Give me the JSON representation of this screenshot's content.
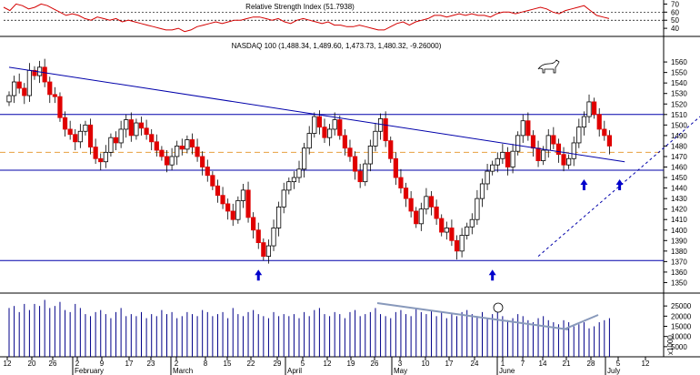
{
  "chart_data": [
    {
      "type": "line",
      "panel": "rsi",
      "title": "Relative Strength Index (51.7938)",
      "ylim": [
        30,
        75
      ],
      "y_ticks": [
        70,
        60,
        50,
        40
      ],
      "reference_lines": [
        60,
        50
      ],
      "series": [
        {
          "values": [
            66,
            62,
            70,
            68,
            64,
            66,
            70,
            68,
            64,
            60,
            56,
            58,
            56,
            52,
            50,
            54,
            52,
            50,
            52,
            48,
            50,
            48,
            46,
            44,
            42,
            40,
            38,
            38,
            40,
            36,
            38,
            42,
            44,
            46,
            48,
            46,
            48,
            50,
            50,
            52,
            54,
            54,
            52,
            50,
            52,
            48,
            46,
            50,
            52,
            50,
            48,
            46,
            48,
            44,
            44,
            42,
            42,
            44,
            42,
            40,
            38,
            38,
            42,
            46,
            48,
            44,
            48,
            50,
            52,
            56,
            56,
            54,
            56,
            58,
            56,
            58,
            56,
            56,
            54,
            58,
            60,
            60,
            58,
            60,
            62,
            64,
            66,
            64,
            60,
            58,
            62,
            64,
            66,
            68,
            62,
            56,
            54,
            52
          ]
        }
      ]
    },
    {
      "type": "candlestick",
      "panel": "price",
      "title": "NASDAQ 100 (1,488.34, 1,489.60, 1,473.73, 1,480.32, -9.26000)",
      "ylim": [
        1350,
        1570
      ],
      "y_ticks": [
        1560,
        1550,
        1540,
        1530,
        1520,
        1510,
        1500,
        1490,
        1480,
        1470,
        1460,
        1450,
        1440,
        1430,
        1420,
        1410,
        1400,
        1390,
        1380,
        1370,
        1360,
        1350
      ],
      "x_tick_labels": [
        "12",
        "20",
        "26",
        "2",
        "9",
        "17",
        "23",
        "2",
        "8",
        "15",
        "22",
        "29",
        "5",
        "12",
        "19",
        "26",
        "3",
        "10",
        "17",
        "24",
        "1",
        "7",
        "14",
        "21",
        "28",
        "5",
        "12"
      ],
      "month_labels": [
        "February",
        "March",
        "April",
        "May",
        "June",
        "July"
      ],
      "closes": [
        1528,
        1541,
        1535,
        1528,
        1552,
        1547,
        1555,
        1541,
        1529,
        1527,
        1507,
        1496,
        1491,
        1484,
        1494,
        1500,
        1479,
        1468,
        1465,
        1474,
        1488,
        1483,
        1496,
        1505,
        1490,
        1502,
        1497,
        1491,
        1484,
        1476,
        1470,
        1462,
        1470,
        1480,
        1477,
        1486,
        1479,
        1470,
        1460,
        1452,
        1442,
        1433,
        1425,
        1418,
        1410,
        1428,
        1438,
        1412,
        1400,
        1388,
        1375,
        1385,
        1402,
        1422,
        1438,
        1446,
        1450,
        1458,
        1478,
        1492,
        1508,
        1498,
        1488,
        1496,
        1505,
        1490,
        1478,
        1470,
        1456,
        1446,
        1463,
        1480,
        1494,
        1506,
        1485,
        1468,
        1450,
        1440,
        1430,
        1418,
        1406,
        1420,
        1432,
        1422,
        1411,
        1398,
        1402,
        1390,
        1380,
        1395,
        1403,
        1410,
        1430,
        1444,
        1456,
        1462,
        1468,
        1474,
        1460,
        1475,
        1490,
        1504,
        1490,
        1478,
        1466,
        1476,
        1490,
        1482,
        1472,
        1462,
        1468,
        1483,
        1498,
        1508,
        1522,
        1510,
        1496,
        1490,
        1480
      ],
      "horizontal_lines": [
        1510,
        1457,
        1371
      ],
      "dashed_level": 1474,
      "trendline": {
        "from": [
          0,
          1555
        ],
        "to": [
          121,
          1465
        ]
      },
      "support_dashed": {
        "from": [
          104,
          1375
        ],
        "to": [
          137,
          1513
        ]
      },
      "up_arrows_at": [
        1371,
        1371,
        1457,
        1457
      ]
    },
    {
      "type": "bar",
      "panel": "volume",
      "ylim": [
        0,
        30000
      ],
      "y_ticks": [
        25000,
        20000,
        15000,
        10000,
        5000
      ],
      "y_unit": "x1000",
      "values": [
        24000,
        25000,
        22000,
        26000,
        23000,
        26000,
        25000,
        28000,
        24000,
        25000,
        27000,
        23000,
        22000,
        26000,
        24000,
        21000,
        20000,
        22000,
        23000,
        21000,
        19000,
        22000,
        24000,
        20000,
        21000,
        20000,
        22000,
        19000,
        21000,
        20000,
        23000,
        21000,
        22000,
        19000,
        20000,
        22000,
        21000,
        20000,
        23000,
        22000,
        20000,
        21000,
        22000,
        19000,
        24000,
        21000,
        20000,
        22000,
        23000,
        21000,
        20000,
        19000,
        22000,
        20000,
        21000,
        20000,
        21000,
        19000,
        22000,
        20000,
        23000,
        24000,
        21000,
        20000,
        22000,
        21000,
        19000,
        22000,
        23000,
        20000,
        21000,
        22000,
        24000,
        21000,
        20000,
        19000,
        22000,
        23000,
        21000,
        20000,
        24000,
        22000,
        21000,
        23000,
        20000,
        22000,
        19000,
        21000,
        20000,
        22000,
        23000,
        21000,
        20000,
        22000,
        19000,
        21000,
        22000,
        20000,
        18000,
        19000,
        21000,
        20000,
        18000,
        17000,
        19000,
        20000,
        18000,
        17000,
        16000,
        18000,
        17000,
        15000,
        16000,
        17000,
        14000,
        15000,
        17000,
        18000,
        19000
      ]
    }
  ]
}
